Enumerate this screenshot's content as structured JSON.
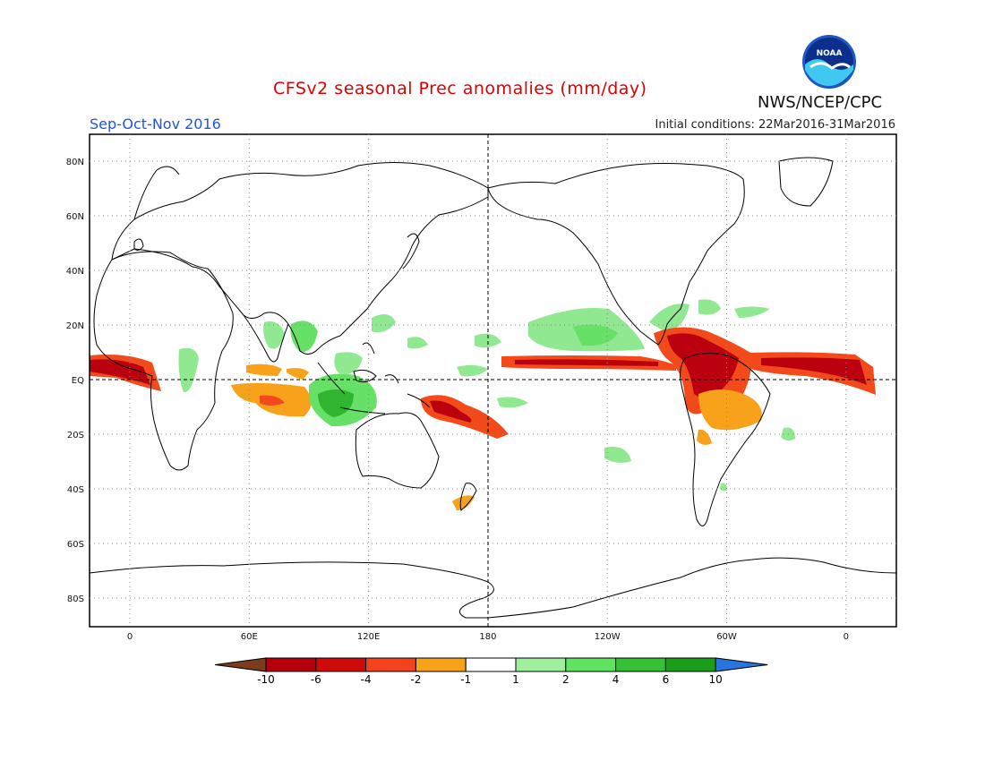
{
  "header": {
    "title": "CFSv2 seasonal Prec anomalies (mm/day)",
    "season": "Sep-Oct-Nov 2016",
    "initial_conditions": "Initial conditions: 22Mar2016-31Mar2016",
    "agency": "NWS/NCEP/CPC",
    "logo_text": "NOAA"
  },
  "colors": {
    "title": "#dd0000",
    "season": "#2255dd",
    "strong_dry": "#b4000a",
    "dry": "#e43a10",
    "mild_dry": "#f7a21a",
    "mild_wet": "#90e890",
    "wet": "#55d055",
    "strong_wet": "#27a827"
  },
  "axes": {
    "lat_labels": [
      "80N",
      "60N",
      "40N",
      "20N",
      "EQ",
      "20S",
      "40S",
      "60S",
      "80S"
    ],
    "lon_labels": [
      "0",
      "60E",
      "120E",
      "180",
      "120W",
      "60W",
      "0"
    ]
  },
  "colorbar": {
    "labels": [
      "-10",
      "-6",
      "-4",
      "-2",
      "-1",
      "1",
      "2",
      "4",
      "6",
      "10"
    ],
    "colors": [
      "#7a3c1d",
      "#b4000a",
      "#cd0b0b",
      "#f2431d",
      "#f7a21a",
      "#ffffff",
      "#9ef09e",
      "#5fe25f",
      "#35c035",
      "#1a9e1a",
      "#2a74e0"
    ]
  }
}
